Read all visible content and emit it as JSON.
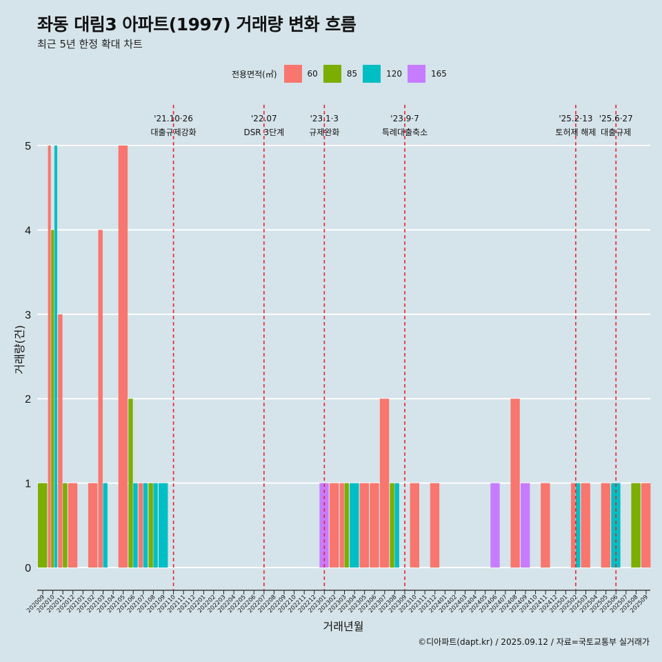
{
  "title": "좌동 대림3 아파트(1997) 거래량 변화 흐름",
  "subtitle": "최근 5년 한정 확대 차트",
  "caption": "©디아파트(dapt.kr) / 2025.09.12 / 자료=국토교통부 실거래가",
  "legend": {
    "title": "전용면적(㎡)",
    "items": [
      {
        "label": "60",
        "color": "#F8766D"
      },
      {
        "label": "85",
        "color": "#7CAE00"
      },
      {
        "label": "120",
        "color": "#00BFC4"
      },
      {
        "label": "165",
        "color": "#C77CFF"
      }
    ]
  },
  "chart_data": {
    "type": "bar",
    "xlabel": "거래년월",
    "ylabel": "거래량(건)",
    "ylim": [
      0,
      5
    ],
    "yticks": [
      0,
      1,
      2,
      3,
      4,
      5
    ],
    "grid": true,
    "legend_position": "top",
    "categories": [
      "202009",
      "202010",
      "202011",
      "202012",
      "202101",
      "202102",
      "202103",
      "202104",
      "202105",
      "202106",
      "202107",
      "202108",
      "202109",
      "202110",
      "202111",
      "202112",
      "202201",
      "202202",
      "202203",
      "202204",
      "202205",
      "202206",
      "202207",
      "202208",
      "202209",
      "202210",
      "202211",
      "202212",
      "202301",
      "202302",
      "202303",
      "202304",
      "202305",
      "202306",
      "202307",
      "202308",
      "202309",
      "202310",
      "202311",
      "202312",
      "202401",
      "202402",
      "202403",
      "202404",
      "202405",
      "202406",
      "202407",
      "202408",
      "202409",
      "202410",
      "202411",
      "202412",
      "202501",
      "202502",
      "202503",
      "202504",
      "202505",
      "202506",
      "202507",
      "202508",
      "202509"
    ],
    "tick_labels": [
      "202009",
      "202010",
      "202011",
      "202012",
      "202101",
      "202102",
      "202103",
      "202104",
      "202105",
      "202106",
      "202107",
      "202108",
      "202109",
      "202110",
      "202111",
      "202112",
      "202201",
      "202202",
      "202203",
      "202204",
      "202205",
      "202206",
      "202207",
      "202208",
      "202209",
      "202210",
      "202211",
      "202212",
      "202301",
      "202302",
      "202303",
      "202304",
      "202305",
      "202306",
      "202307",
      "202308",
      "202309",
      "202310",
      "202311",
      "202312",
      "202401",
      "202402",
      "202403",
      "202404",
      "202405",
      "202406",
      "202407",
      "202408",
      "202409",
      "202410",
      "202411",
      "202412",
      "202501",
      "202502",
      "202503",
      "202504",
      "202505",
      "202506",
      "202507",
      "202508",
      "202509"
    ],
    "series": [
      {
        "name": "60",
        "values": [
          0,
          5,
          3,
          1,
          0,
          1,
          4,
          0,
          5,
          0,
          1,
          0,
          0,
          0,
          0,
          0,
          0,
          0,
          0,
          0,
          0,
          0,
          0,
          0,
          0,
          0,
          0,
          0,
          0,
          1,
          1,
          0,
          1,
          1,
          2,
          0,
          0,
          1,
          0,
          1,
          0,
          0,
          0,
          0,
          0,
          0,
          0,
          2,
          0,
          0,
          1,
          0,
          0,
          1,
          1,
          0,
          1,
          0,
          0,
          0,
          1
        ]
      },
      {
        "name": "85",
        "values": [
          1,
          4,
          1,
          0,
          0,
          0,
          0,
          0,
          0,
          2,
          0,
          1,
          0,
          0,
          0,
          0,
          0,
          0,
          0,
          0,
          0,
          0,
          0,
          0,
          0,
          0,
          0,
          0,
          0,
          0,
          1,
          0,
          0,
          0,
          0,
          1,
          0,
          0,
          0,
          0,
          0,
          0,
          0,
          0,
          0,
          0,
          0,
          0,
          0,
          0,
          0,
          0,
          0,
          0,
          0,
          0,
          0,
          0,
          0,
          1,
          0
        ]
      },
      {
        "name": "120",
        "values": [
          0,
          5,
          0,
          0,
          0,
          0,
          1,
          0,
          0,
          1,
          1,
          1,
          1,
          0,
          0,
          0,
          0,
          0,
          0,
          0,
          0,
          0,
          0,
          0,
          0,
          0,
          0,
          0,
          0,
          0,
          0,
          1,
          0,
          0,
          0,
          1,
          0,
          0,
          0,
          0,
          0,
          0,
          0,
          0,
          0,
          0,
          0,
          0,
          0,
          0,
          0,
          0,
          0,
          1,
          0,
          0,
          0,
          1,
          0,
          0,
          0
        ]
      },
      {
        "name": "165",
        "values": [
          0,
          0,
          0,
          0,
          0,
          0,
          0,
          0,
          0,
          0,
          0,
          0,
          0,
          0,
          0,
          0,
          0,
          0,
          0,
          0,
          0,
          0,
          0,
          0,
          0,
          0,
          0,
          0,
          1,
          0,
          0,
          0,
          0,
          0,
          0,
          0,
          0,
          0,
          0,
          0,
          0,
          0,
          0,
          0,
          0,
          1,
          0,
          0,
          1,
          0,
          0,
          0,
          0,
          0,
          0,
          0,
          0,
          0,
          0,
          0,
          0
        ]
      }
    ],
    "annotations": [
      {
        "date": "'21.10·26",
        "label": "대출규제강화",
        "x": "202110"
      },
      {
        "date": "'22.07",
        "label": "DSR 3단계",
        "x": "202207"
      },
      {
        "date": "'23.1·3",
        "label": "규제완화",
        "x": "202301"
      },
      {
        "date": "'23.9·7",
        "label": "특례대출축소",
        "x": "202309"
      },
      {
        "date": "'25.2·13",
        "label": "토허제 해제",
        "x": "202502"
      },
      {
        "date": "'25.6·27",
        "label": "대출규제",
        "x": "202506"
      }
    ],
    "annotation_color": "#e8202a"
  }
}
